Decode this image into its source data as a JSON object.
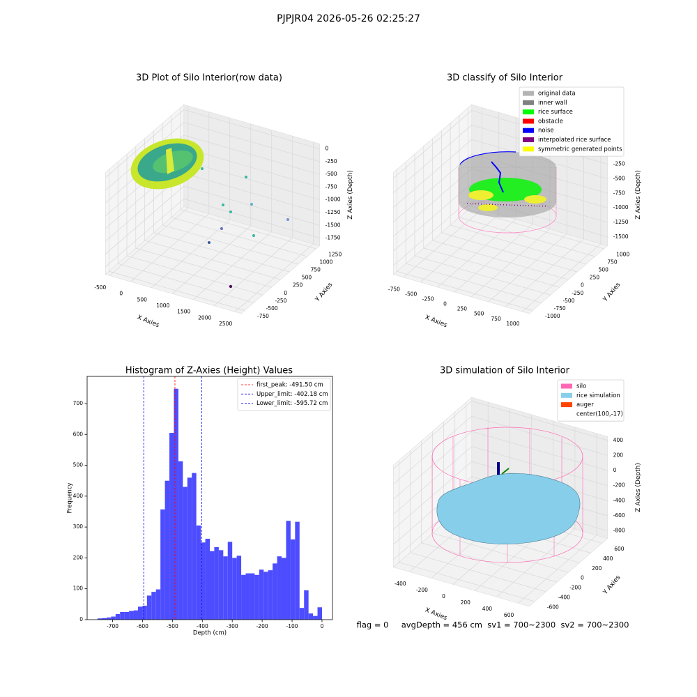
{
  "title": "PJPJR04 2026-05-26 02:25:27",
  "footer": "flag = 0     avgDepth = 456 cm  sv1 = 700~2300  sv2 = 700~2300",
  "chart_data": [
    {
      "type": "scatter3d",
      "title": "3D Plot of Silo Interior(row data)",
      "xlabel": "X Axies",
      "ylabel": "Y Axies",
      "zlabel": "Z Axies (Depth)",
      "xlim": [
        -600,
        2650
      ],
      "ylim": [
        -850,
        1350
      ],
      "zlim": [
        -1900,
        100
      ],
      "xticks": [
        -500,
        0,
        500,
        1000,
        1500,
        2000,
        2500
      ],
      "yticks": [
        -750,
        -500,
        -250,
        0,
        250,
        500,
        750,
        1000,
        1250
      ],
      "zticks": [
        -1750,
        -1500,
        -1250,
        -1000,
        -750,
        -500,
        -250,
        0
      ]
    },
    {
      "type": "scatter3d",
      "title": "3D classify of Silo Interior",
      "xlabel": "X Axies",
      "ylabel": "Y Axies",
      "zlabel": "Z Axies (Depth)",
      "xlim": [
        -900,
        1100
      ],
      "ylim": [
        -1100,
        1100
      ],
      "zlim": [
        -1650,
        100
      ],
      "xticks": [
        -750,
        -500,
        -250,
        0,
        250,
        500,
        750,
        1000
      ],
      "yticks": [
        -1000,
        -750,
        -500,
        -250,
        0,
        250,
        500,
        750,
        1000
      ],
      "zticks": [
        -1500,
        -1250,
        -1000,
        -750,
        -500,
        -250,
        0
      ],
      "legend_loc": "upper right",
      "legend": [
        {
          "name": "original data",
          "color": "#b3b3b3"
        },
        {
          "name": "inner wall",
          "color": "#808080"
        },
        {
          "name": "rice surface",
          "color": "#00ff00"
        },
        {
          "name": "obstacle",
          "color": "#ff0000"
        },
        {
          "name": "noise",
          "color": "#0000ff"
        },
        {
          "name": "interpolated rice surface",
          "color": "#800080"
        },
        {
          "name": "symmetric generated points",
          "color": "#ffff00"
        }
      ]
    },
    {
      "type": "histogram",
      "title": "Histogram of Z-Axies (Height) Values",
      "xlabel": "Depth (cm)",
      "ylabel": "Frequency",
      "color": "#4d4dff",
      "bins": [
        -750,
        -735,
        -720,
        -705,
        -690,
        -675,
        -660,
        -645,
        -630,
        -615,
        -600,
        -585,
        -570,
        -555,
        -540,
        -525,
        -510,
        -495,
        -480,
        -465,
        -450,
        -435,
        -420,
        -405,
        -390,
        -375,
        -360,
        -345,
        -330,
        -315,
        -300,
        -285,
        -270,
        -255,
        -240,
        -225,
        -210,
        -195,
        -180,
        -165,
        -150,
        -135,
        -120,
        -105,
        -90,
        -75,
        -60,
        -45,
        -30,
        -15,
        0
      ],
      "counts": [
        4,
        5,
        7,
        10,
        18,
        25,
        25,
        28,
        30,
        42,
        45,
        78,
        90,
        98,
        357,
        450,
        605,
        748,
        513,
        430,
        460,
        475,
        305,
        250,
        262,
        222,
        235,
        225,
        205,
        252,
        200,
        207,
        145,
        150,
        150,
        145,
        162,
        155,
        160,
        182,
        205,
        200,
        320,
        260,
        317,
        38,
        95,
        20,
        12,
        40
      ],
      "xlim": [
        -785,
        35
      ],
      "ylim": [
        0,
        788
      ],
      "xticks": [
        -700,
        -600,
        -500,
        -400,
        -300,
        -200,
        -100,
        0
      ],
      "yticks": [
        0,
        100,
        200,
        300,
        400,
        500,
        600,
        700
      ],
      "legend_loc": "upper right",
      "lines": [
        {
          "name": "first_peak: -491.50 cm",
          "value": -491.5,
          "color": "#ff0000"
        },
        {
          "name": "Upper_limit: -402.18 cm",
          "value": -402.18,
          "color": "#0000ff"
        },
        {
          "name": "Lower_limit: -595.72 cm",
          "value": -595.72,
          "color": "#0000ff"
        }
      ]
    },
    {
      "type": "scatter3d",
      "title": "3D simulation of Silo Interior",
      "xlabel": "X Axies",
      "ylabel": "Y Axies",
      "zlabel": "Z Axies (Depth)",
      "xlim": [
        -550,
        700
      ],
      "ylim": [
        -700,
        700
      ],
      "zlim": [
        -900,
        450
      ],
      "xticks": [
        -400,
        -200,
        0,
        200,
        400,
        600
      ],
      "yticks": [
        -600,
        -400,
        -200,
        0,
        200,
        400,
        600
      ],
      "zticks": [
        -800,
        -600,
        -400,
        -200,
        0,
        200,
        400
      ],
      "legend_loc": "upper right",
      "legend": [
        {
          "name": "silo",
          "color": "#ff69b4"
        },
        {
          "name": "rice simulation",
          "color": "#87ceeb"
        },
        {
          "name": "auger",
          "color": "#ff4500"
        },
        {
          "name": "center(100,-17)",
          "color": "#ffffff"
        }
      ]
    }
  ]
}
